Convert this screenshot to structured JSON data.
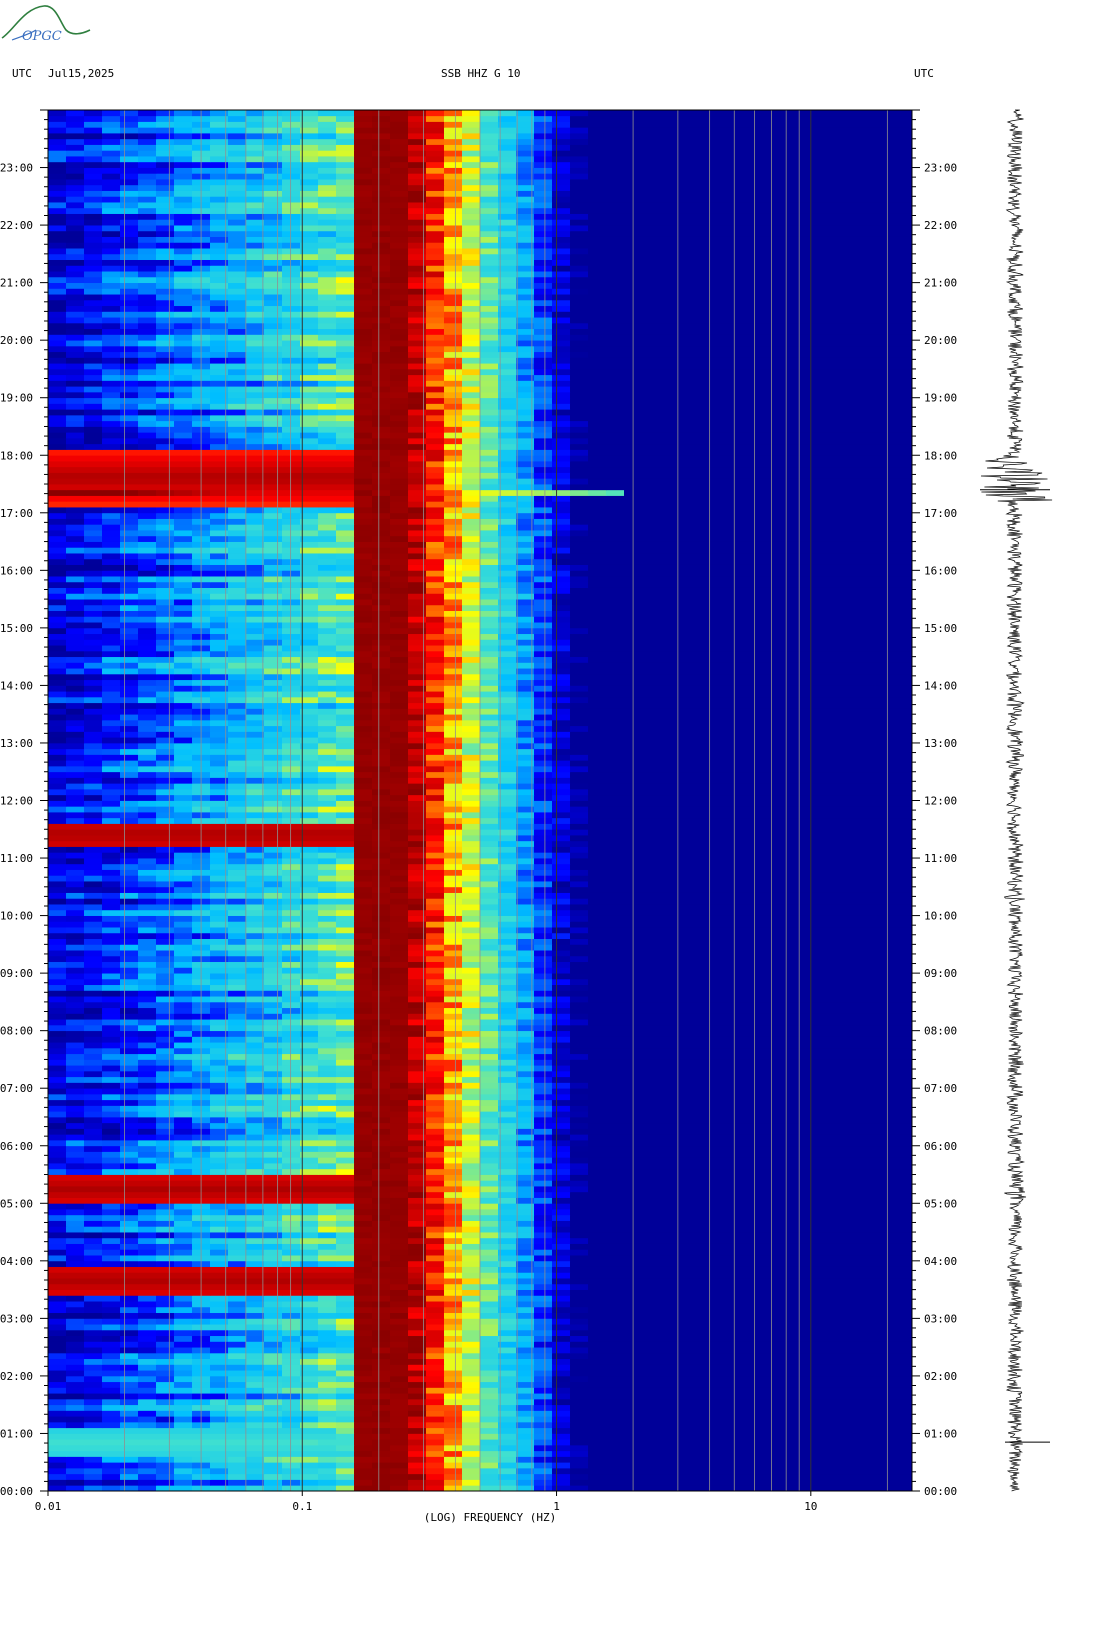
{
  "header": {
    "left_tz": "UTC",
    "date": "Jul15,2025",
    "station": "SSB HHZ G 10",
    "right_tz": "UTC"
  },
  "logo": {
    "text": "OPGC",
    "colors": [
      "#2f7f3f",
      "#3a6fc0"
    ]
  },
  "chart_data": {
    "type": "heatmap",
    "title": "SSB HHZ G 10",
    "xlabel": "(LOG) FREQUENCY (HZ)",
    "ylabel": "UTC",
    "x_scale": "log",
    "xlim": [
      0.01,
      25
    ],
    "x_ticks": [
      {
        "value": 0.01,
        "label": "0.01"
      },
      {
        "value": 0.1,
        "label": "0.1"
      },
      {
        "value": 1,
        "label": "1"
      },
      {
        "value": 10,
        "label": "10"
      }
    ],
    "ylim": [
      "00:00",
      "24:00"
    ],
    "y_ticks": [
      "00:00",
      "01:00",
      "02:00",
      "03:00",
      "04:00",
      "05:00",
      "06:00",
      "07:00",
      "08:00",
      "09:00",
      "10:00",
      "11:00",
      "12:00",
      "13:00",
      "14:00",
      "15:00",
      "16:00",
      "17:00",
      "18:00",
      "19:00",
      "20:00",
      "21:00",
      "22:00",
      "23:00"
    ],
    "colormap": [
      "#00008b",
      "#0000ff",
      "#00bfff",
      "#40e0d0",
      "#ffff00",
      "#ff0000",
      "#8b0000"
    ],
    "microseism_peak_hz": 0.2,
    "events_utc": [
      "17:37",
      "11:25",
      "05:15",
      "03:40",
      "00:50"
    ]
  }
}
